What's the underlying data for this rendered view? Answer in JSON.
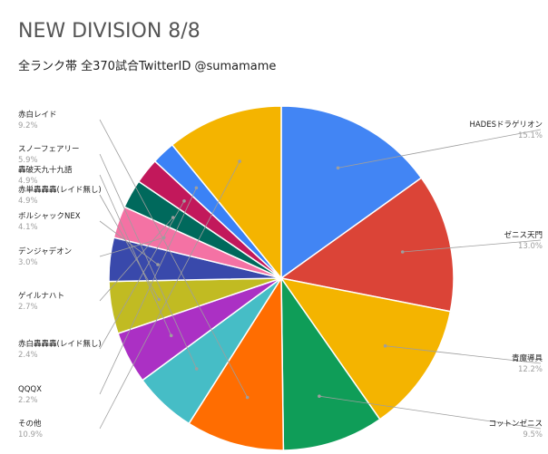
{
  "chart_data": {
    "type": "pie",
    "title": "NEW DIVISION 8/8",
    "subtitle": "全ランク帯 全370試合TwitterID @sumamame",
    "slices": [
      {
        "label": "HADESドラゲリオン",
        "value": 15.1,
        "pct_label": "15.1%",
        "color": "#4285f4"
      },
      {
        "label": "ゼニス天門",
        "value": 13.0,
        "pct_label": "13.0%",
        "color": "#db4437"
      },
      {
        "label": "青魔導具",
        "value": 12.2,
        "pct_label": "12.2%",
        "color": "#f4b400"
      },
      {
        "label": "コットンゼニス",
        "value": 9.5,
        "pct_label": "9.5%",
        "color": "#0f9d58"
      },
      {
        "label": "赤白レイド",
        "value": 9.2,
        "pct_label": "9.2%",
        "color": "#ff6d01"
      },
      {
        "label": "スノーフェアリー",
        "value": 5.9,
        "pct_label": "5.9%",
        "color": "#46bdc6"
      },
      {
        "label": "轟破天九十九語",
        "value": 4.9,
        "pct_label": "4.9%",
        "color": "#ab30c4"
      },
      {
        "label": "赤単轟轟轟(レイド無し)",
        "value": 4.9,
        "pct_label": "4.9%",
        "color": "#c1bb22"
      },
      {
        "label": "ボルシャックNEX",
        "value": 4.1,
        "pct_label": "4.1%",
        "color": "#3949ab"
      },
      {
        "label": "デンジャデオン",
        "value": 3.0,
        "pct_label": "3.0%",
        "color": "#f472a4"
      },
      {
        "label": "ゲイルナハト",
        "value": 2.7,
        "pct_label": "2.7%",
        "color": "#00695c"
      },
      {
        "label": "赤白轟轟轟(レイド無し)",
        "value": 2.4,
        "pct_label": "2.4%",
        "color": "#c2185b"
      },
      {
        "label": "QQQX",
        "value": 2.2,
        "pct_label": "2.2%",
        "color": "#3b82f6"
      },
      {
        "label": "その他",
        "value": 10.9,
        "pct_label": "10.9%",
        "color": "#f4b400"
      }
    ],
    "legend": "none"
  }
}
